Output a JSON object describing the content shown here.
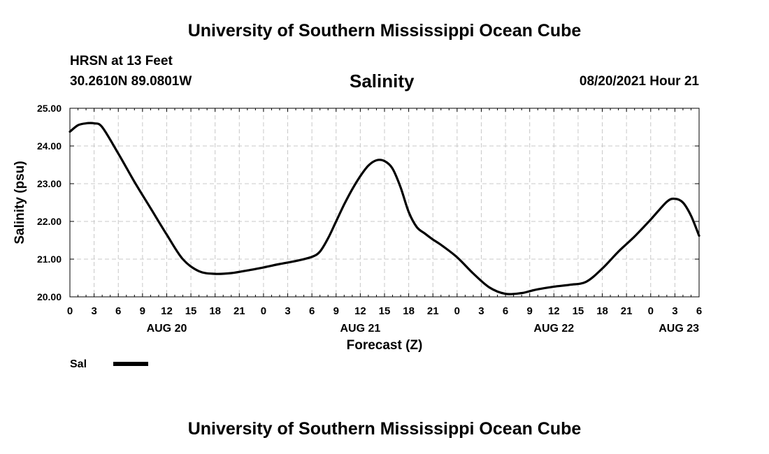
{
  "header": {
    "title": "University of Southern Mississippi Ocean Cube",
    "station": "HRSN at 13 Feet",
    "coordinates": "30.2610N  89.0801W",
    "chart_title": "Salinity",
    "datetime": "08/20/2021 Hour 21"
  },
  "footer": {
    "title": "University of Southern Mississippi Ocean Cube"
  },
  "chart_data": {
    "type": "line",
    "title": "Salinity",
    "xlabel": "Forecast (Z)",
    "ylabel": "Salinity (psu)",
    "ylim": [
      20.0,
      25.0
    ],
    "xlim": [
      0,
      78
    ],
    "grid": true,
    "x_ticks": [
      0,
      3,
      6,
      9,
      12,
      15,
      18,
      21,
      24,
      27,
      30,
      33,
      36,
      39,
      42,
      45,
      48,
      51,
      54,
      57,
      60,
      63,
      66,
      69,
      72,
      75,
      78
    ],
    "x_tick_labels": [
      "0",
      "3",
      "6",
      "9",
      "12",
      "15",
      "18",
      "21",
      "0",
      "3",
      "6",
      "9",
      "12",
      "15",
      "18",
      "21",
      "0",
      "3",
      "6",
      "9",
      "12",
      "15",
      "18",
      "21",
      "0",
      "3",
      "6"
    ],
    "day_labels": [
      {
        "label": "AUG 20",
        "x": 12
      },
      {
        "label": "AUG 21",
        "x": 36
      },
      {
        "label": "AUG 22",
        "x": 60
      },
      {
        "label": "AUG 23",
        "x": 75.5
      }
    ],
    "y_ticks": [
      20.0,
      21.0,
      22.0,
      23.0,
      24.0,
      25.0
    ],
    "y_tick_labels": [
      "20.00",
      "21.00",
      "22.00",
      "23.00",
      "24.00",
      "25.00"
    ],
    "legend_position": "bottom-left",
    "series": [
      {
        "name": "Sal",
        "color": "#000000",
        "x": [
          0,
          1,
          2,
          3,
          4,
          6,
          8,
          10,
          12,
          14,
          16,
          18,
          20,
          22,
          24,
          26,
          28,
          30,
          31,
          32,
          33,
          34,
          35,
          36,
          37,
          38,
          39,
          40,
          41,
          42,
          43,
          44,
          45,
          46,
          48,
          50,
          52,
          54,
          56,
          57,
          58,
          60,
          62,
          64,
          66,
          68,
          70,
          72,
          74,
          75,
          76,
          77,
          78
        ],
        "y": [
          24.38,
          24.55,
          24.6,
          24.6,
          24.5,
          23.8,
          23.05,
          22.35,
          21.65,
          21.0,
          20.68,
          20.61,
          20.63,
          20.7,
          20.78,
          20.87,
          20.95,
          21.06,
          21.2,
          21.55,
          22.0,
          22.45,
          22.85,
          23.2,
          23.48,
          23.62,
          23.6,
          23.4,
          22.9,
          22.25,
          21.85,
          21.68,
          21.52,
          21.38,
          21.05,
          20.62,
          20.25,
          20.08,
          20.1,
          20.15,
          20.2,
          20.27,
          20.32,
          20.4,
          20.75,
          21.2,
          21.6,
          22.05,
          22.52,
          22.6,
          22.5,
          22.15,
          21.62
        ]
      }
    ]
  }
}
